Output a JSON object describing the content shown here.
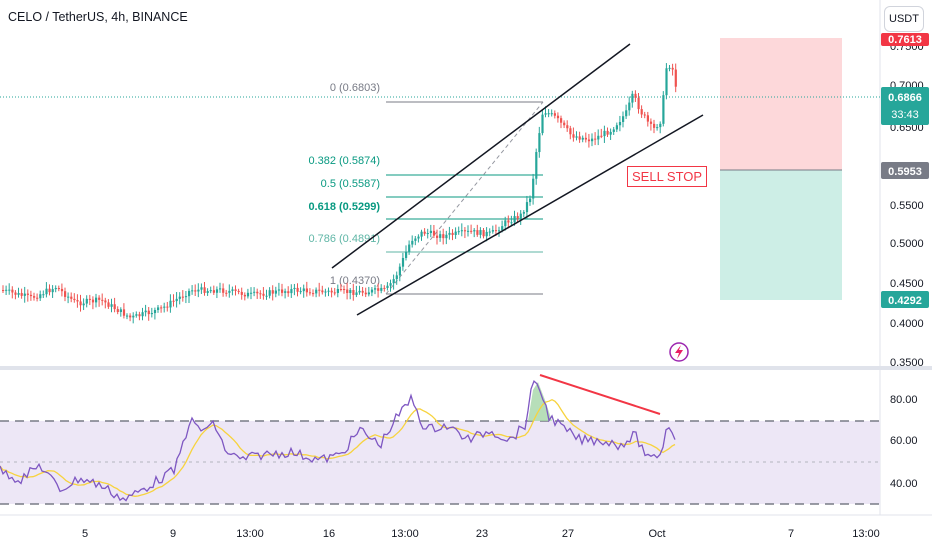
{
  "header": {
    "title": "CELO / TetherUS, 4h, BINANCE",
    "currency_button": "USDT"
  },
  "colors": {
    "up": "#26a69a",
    "down": "#ef5350",
    "rsi_line": "#7e57c2",
    "rsi_ma": "#f7d33e",
    "fib": "#089981",
    "fib_muted": "#5fb6a6",
    "accent_red": "#f23645",
    "profit_zone": "#cdeee6",
    "loss_zone": "#fdd8da"
  },
  "price_scale": {
    "labels": [
      "0.7500",
      "0.7000",
      "0.6500",
      "0.5500",
      "0.5000",
      "0.4500",
      "0.4000",
      "0.3500"
    ],
    "badges": {
      "top": "0.7613",
      "current_price": "0.6866",
      "countdown": "33:43",
      "entry": "0.5953",
      "target": "0.4292"
    }
  },
  "rsi_scale": {
    "labels": [
      "80.00",
      "60.00",
      "40.00"
    ]
  },
  "time_axis": {
    "labels": [
      "5",
      "9",
      "13:00",
      "16",
      "13:00",
      "23",
      "27",
      "Oct",
      "7",
      "13:00"
    ]
  },
  "fib_levels": [
    {
      "label": "0 (0.6803)"
    },
    {
      "label": "0.382 (0.5874)"
    },
    {
      "label": "0.5 (0.5587)"
    },
    {
      "label": "0.618 (0.5299)"
    },
    {
      "label": "0.786 (0.4891)"
    },
    {
      "label": "1 (0.4370)"
    }
  ],
  "annotation": {
    "sell_stop_label": "SELL STOP"
  },
  "icons": {
    "event_marker": "lightning-icon"
  }
}
